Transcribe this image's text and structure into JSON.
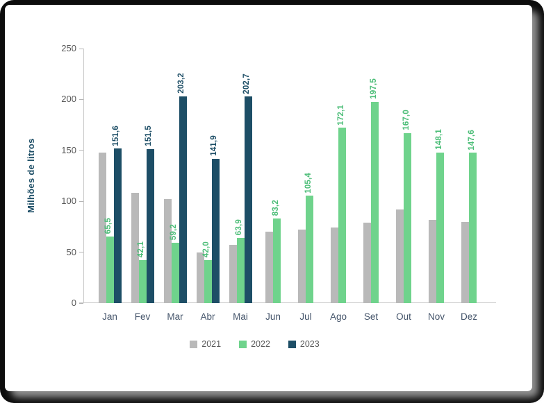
{
  "chart_data": {
    "type": "bar",
    "title": "",
    "xlabel": "",
    "ylabel": "Milhões de litros",
    "ylim": [
      0,
      250
    ],
    "yticks": [
      0,
      50,
      100,
      150,
      200,
      250
    ],
    "grid": false,
    "legend_position": "bottom",
    "categories": [
      "Jan",
      "Fev",
      "Mar",
      "Abr",
      "Mai",
      "Jun",
      "Jul",
      "Ago",
      "Set",
      "Out",
      "Nov",
      "Dez"
    ],
    "series": [
      {
        "name": "2021",
        "color": "#b9b9b9",
        "label_color": "#b9b9b9",
        "show_labels": false,
        "values": [
          148,
          108,
          102,
          50,
          57,
          70,
          72,
          74,
          79,
          92,
          82,
          80
        ],
        "labels": [
          "",
          "",
          "",
          "",
          "",
          "",
          "",
          "",
          "",
          "",
          "",
          ""
        ]
      },
      {
        "name": "2022",
        "color": "#6fd38c",
        "label_color": "#4bbd77",
        "show_labels": true,
        "values": [
          65.5,
          42.1,
          59.2,
          42.0,
          63.9,
          83.2,
          105.4,
          172.1,
          197.5,
          167.0,
          148.1,
          147.6
        ],
        "labels": [
          "65,5",
          "42,1",
          "59,2",
          "42,0",
          "63,9",
          "83,2",
          "105,4",
          "172,1",
          "197,5",
          "167,0",
          "148,1",
          "147,6"
        ]
      },
      {
        "name": "2023",
        "color": "#1d4e66",
        "label_color": "#1d4e66",
        "show_labels": true,
        "values": [
          151.6,
          151.5,
          203.2,
          141.9,
          202.7,
          null,
          null,
          null,
          null,
          null,
          null,
          null
        ],
        "labels": [
          "151,6",
          "151,5",
          "203,2",
          "141,9",
          "202,7",
          "",
          "",
          "",
          "",
          "",
          "",
          ""
        ]
      }
    ],
    "legend": [
      "2021",
      "2022",
      "2023"
    ]
  }
}
